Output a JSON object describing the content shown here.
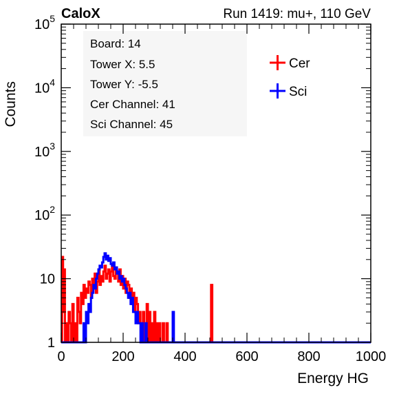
{
  "header": {
    "left_title": "CaloX",
    "right_title": "Run 1419: mu+, 110 GeV"
  },
  "info_box": {
    "lines": [
      "Board: 14",
      "Tower X: 5.5",
      "Tower Y: -5.5",
      "Cer Channel: 41",
      "Sci Channel: 45"
    ]
  },
  "chart_data": {
    "type": "histogram",
    "xlabel": "Energy HG",
    "ylabel": "Counts",
    "xlim": [
      0,
      1000
    ],
    "ylim": [
      1,
      100000
    ],
    "y_scale": "log",
    "x_ticks": [
      "0",
      "200",
      "400",
      "600",
      "800",
      "1000"
    ],
    "y_ticks": [
      {
        "base": "1",
        "exp": ""
      },
      {
        "base": "10",
        "exp": ""
      },
      {
        "base": "10",
        "exp": "2"
      },
      {
        "base": "10",
        "exp": "3"
      },
      {
        "base": "10",
        "exp": "4"
      },
      {
        "base": "10",
        "exp": "5"
      }
    ],
    "legend_position": "top-right",
    "series": [
      {
        "name": "Cer",
        "color": "#ff0000",
        "x": [
          0,
          3,
          6,
          9,
          12,
          16,
          20,
          24,
          28,
          32,
          36,
          40,
          44,
          48,
          52,
          56,
          60,
          64,
          68,
          72,
          76,
          80,
          84,
          88,
          92,
          96,
          100,
          104,
          108,
          112,
          116,
          120,
          124,
          128,
          132,
          136,
          140,
          144,
          148,
          152,
          156,
          160,
          164,
          168,
          172,
          176,
          180,
          184,
          188,
          192,
          196,
          200,
          204,
          208,
          212,
          216,
          220,
          224,
          228,
          232,
          236,
          240,
          244,
          248,
          252,
          256,
          260,
          264,
          268,
          272,
          276,
          280,
          284,
          288,
          292,
          296,
          300,
          304,
          308,
          312,
          316,
          320,
          324,
          328,
          332,
          336,
          340,
          344,
          348,
          352,
          356,
          360,
          364,
          368,
          372,
          376,
          380,
          384,
          388,
          392,
          396,
          400,
          440,
          480,
          484,
          488,
          500,
          1000
        ],
        "y": [
          1,
          22,
          3,
          14,
          1,
          2,
          1,
          3,
          2,
          1,
          4,
          1,
          2,
          1,
          5,
          3,
          2,
          6,
          4,
          8,
          5,
          7,
          6,
          9,
          8,
          5,
          10,
          7,
          12,
          6,
          9,
          14,
          8,
          11,
          9,
          13,
          16,
          10,
          12,
          14,
          9,
          13,
          17,
          11,
          10,
          15,
          12,
          9,
          14,
          8,
          11,
          7,
          10,
          6,
          9,
          8,
          5,
          7,
          4,
          6,
          3,
          5,
          4,
          2,
          3,
          2,
          1,
          3,
          1,
          2,
          4,
          1,
          3,
          1,
          2,
          1,
          3,
          1,
          2,
          1,
          2,
          1,
          1,
          2,
          1,
          1,
          2,
          1,
          1,
          1,
          1,
          1,
          1,
          1,
          1,
          1,
          1,
          1,
          1,
          1,
          1,
          1,
          1,
          1,
          8,
          1,
          1,
          1
        ]
      },
      {
        "name": "Sci",
        "color": "#0000ff",
        "x": [
          0,
          40,
          44,
          48,
          52,
          56,
          60,
          64,
          68,
          72,
          76,
          80,
          84,
          88,
          92,
          96,
          100,
          104,
          108,
          112,
          116,
          120,
          124,
          128,
          132,
          136,
          140,
          144,
          148,
          152,
          156,
          160,
          164,
          168,
          172,
          176,
          180,
          184,
          188,
          192,
          196,
          200,
          204,
          208,
          212,
          216,
          220,
          224,
          228,
          232,
          236,
          240,
          244,
          248,
          252,
          256,
          260,
          264,
          268,
          272,
          276,
          280,
          284,
          288,
          292,
          296,
          300,
          304,
          308,
          312,
          316,
          320,
          324,
          328,
          332,
          336,
          340,
          344,
          348,
          352,
          356,
          360,
          364,
          368,
          372,
          376,
          380,
          384,
          388,
          392,
          396,
          400,
          1000
        ],
        "y": [
          1,
          1,
          1,
          1,
          1,
          1,
          1,
          1,
          1,
          2,
          1,
          3,
          2,
          4,
          3,
          5,
          6,
          8,
          7,
          10,
          12,
          14,
          16,
          15,
          18,
          22,
          25,
          20,
          23,
          19,
          21,
          17,
          16,
          18,
          14,
          15,
          12,
          13,
          10,
          11,
          9,
          10,
          8,
          7,
          6,
          5,
          6,
          4,
          5,
          3,
          3,
          2,
          3,
          2,
          2,
          1,
          2,
          1,
          1,
          2,
          1,
          1,
          1,
          1,
          1,
          1,
          1,
          1,
          1,
          1,
          1,
          1,
          1,
          1,
          1,
          1,
          1,
          1,
          1,
          1,
          1,
          3,
          1,
          1,
          1,
          1,
          1,
          1,
          1,
          1,
          1,
          1,
          1
        ]
      }
    ]
  }
}
